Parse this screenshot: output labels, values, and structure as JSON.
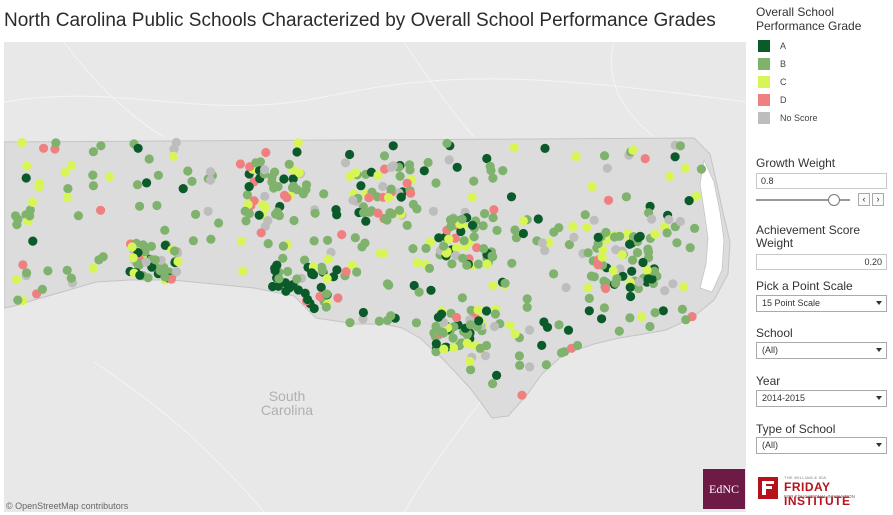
{
  "title": "North Carolina Public Schools Characterized by Overall School Performance Grades",
  "map": {
    "attribution": "© OpenStreetMap contributors",
    "neighbor_label_line1": "South",
    "neighbor_label_line2": "Carolina",
    "ednc_logo": "EdNC"
  },
  "colors": {
    "A": "#0b5a2a",
    "B": "#7fb26d",
    "C": "#d8f556",
    "D": "#f08080",
    "No Score": "#bdbdbd",
    "land": "#e8e8e8",
    "state": "#dcdcdc",
    "water": "#ffffff"
  },
  "panel": {
    "legend_title_1": "Overall School",
    "legend_title_2": "Performance Grade",
    "legend": [
      {
        "key": "A",
        "label": "A"
      },
      {
        "key": "B",
        "label": "B"
      },
      {
        "key": "C",
        "label": "C"
      },
      {
        "key": "D",
        "label": "D"
      },
      {
        "key": "No Score",
        "label": "No Score"
      }
    ],
    "growth_weight_label": "Growth Weight",
    "growth_weight_value": "0.8",
    "growth_slider_level": 0.8,
    "achievement_label_1": "Achievement Score",
    "achievement_label_2": "Weight",
    "achievement_value": "0.20",
    "point_scale_label": "Pick a Point Scale",
    "point_scale_value": "15 Point Scale",
    "school_label": "School",
    "school_value": "(All)",
    "year_label": "Year",
    "year_value": "2014-2015",
    "type_label": "Type of School",
    "type_value": "(All)"
  },
  "friday_logo": {
    "line1": "THE WILLIAM & IDA",
    "line2": "FRIDAY INSTITUTE",
    "line3": "FOR EDUCATIONAL INNOVATION"
  }
}
